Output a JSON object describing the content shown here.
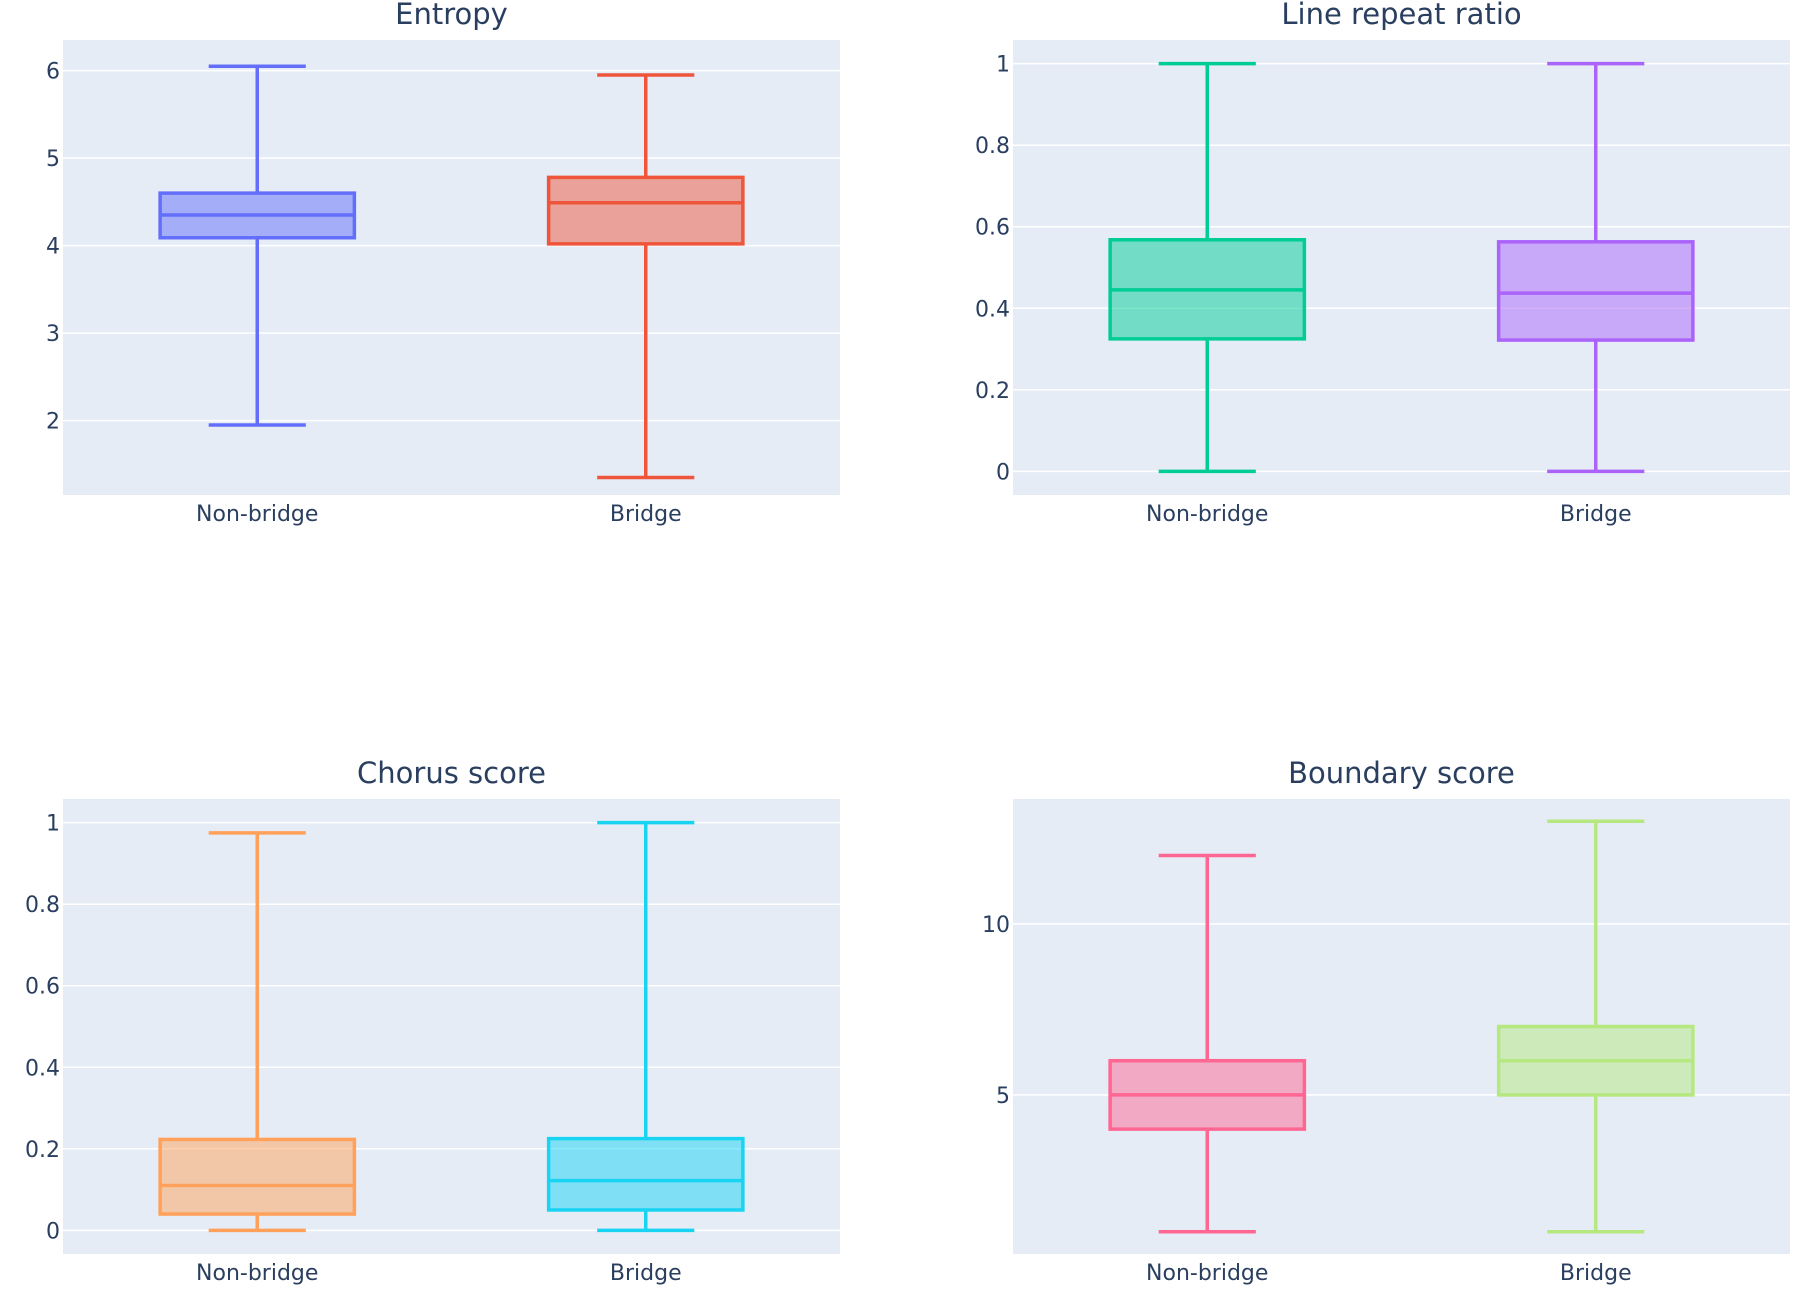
{
  "chart_data": [
    {
      "type": "box",
      "title": "Entropy",
      "categories": [
        "Non-bridge",
        "Bridge"
      ],
      "ylim": [
        1.15,
        6.35
      ],
      "yticks": [
        2,
        3,
        4,
        5,
        6
      ],
      "ytick_labels": [
        "2",
        "3",
        "4",
        "5",
        "6"
      ],
      "series": [
        {
          "name": "Non-bridge",
          "color": "#636efa",
          "min": 1.95,
          "q1": 4.09,
          "median": 4.35,
          "q3": 4.6,
          "max": 6.05
        },
        {
          "name": "Bridge",
          "color": "#ef553b",
          "min": 1.35,
          "q1": 4.02,
          "median": 4.49,
          "q3": 4.78,
          "max": 5.95
        }
      ]
    },
    {
      "type": "box",
      "title": "Line repeat ratio",
      "categories": [
        "Non-bridge",
        "Bridge"
      ],
      "ylim": [
        -0.058,
        1.058
      ],
      "yticks": [
        0,
        0.2,
        0.4,
        0.6,
        0.8,
        1
      ],
      "ytick_labels": [
        "0",
        "0.2",
        "0.4",
        "0.6",
        "0.8",
        "1"
      ],
      "series": [
        {
          "name": "Non-bridge",
          "color": "#00cc96",
          "min": 0,
          "q1": 0.325,
          "median": 0.445,
          "q3": 0.568,
          "max": 1
        },
        {
          "name": "Bridge",
          "color": "#ab63fa",
          "min": 0,
          "q1": 0.322,
          "median": 0.437,
          "q3": 0.563,
          "max": 1
        }
      ]
    },
    {
      "type": "box",
      "title": "Chorus score",
      "categories": [
        "Non-bridge",
        "Bridge"
      ],
      "ylim": [
        -0.058,
        1.058
      ],
      "yticks": [
        0,
        0.2,
        0.4,
        0.6,
        0.8,
        1
      ],
      "ytick_labels": [
        "0",
        "0.2",
        "0.4",
        "0.6",
        "0.8",
        "1"
      ],
      "series": [
        {
          "name": "Non-bridge",
          "color": "#ffa15a",
          "min": 0,
          "q1": 0.04,
          "median": 0.11,
          "q3": 0.223,
          "max": 0.975
        },
        {
          "name": "Bridge",
          "color": "#19d3f3",
          "min": 0,
          "q1": 0.05,
          "median": 0.122,
          "q3": 0.225,
          "max": 1
        }
      ]
    },
    {
      "type": "box",
      "title": "Boundary score",
      "categories": [
        "Non-bridge",
        "Bridge"
      ],
      "ylim": [
        0.35,
        13.65
      ],
      "yticks": [
        5,
        10
      ],
      "ytick_labels": [
        "5",
        "10"
      ],
      "series": [
        {
          "name": "Non-bridge",
          "color": "#ff6692",
          "min": 1,
          "q1": 4,
          "median": 5,
          "q3": 6,
          "max": 12
        },
        {
          "name": "Bridge",
          "color": "#b6e880",
          "min": 1,
          "q1": 5,
          "median": 6,
          "q3": 7,
          "max": 13
        }
      ]
    }
  ]
}
